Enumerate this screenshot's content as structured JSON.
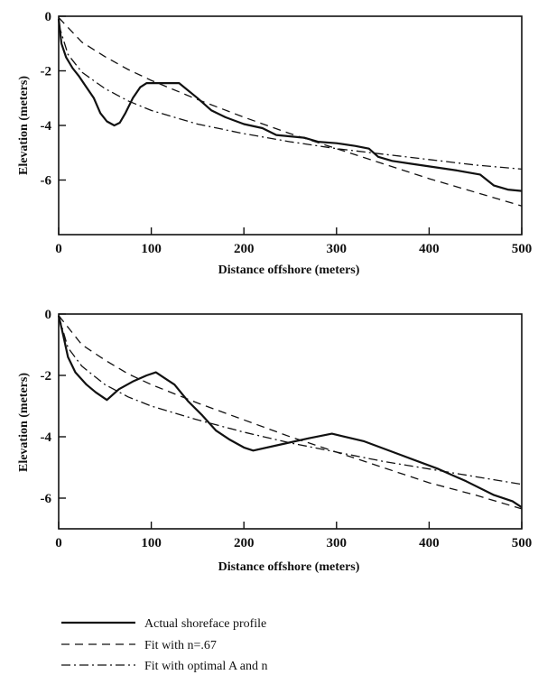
{
  "chart_data": [
    {
      "type": "line",
      "xlabel": "Distance offshore (meters)",
      "ylabel": "Elevation (meters)",
      "xlim": [
        0,
        500
      ],
      "ylim": [
        -8,
        0
      ],
      "x_ticks": [
        0,
        100,
        200,
        300,
        400,
        500
      ],
      "y_ticks": [
        0,
        -2,
        -4,
        -6
      ],
      "grid": false,
      "series": [
        {
          "name": "Actual shoreface profile",
          "style": "solid",
          "points": [
            [
              0,
              -0.1
            ],
            [
              3,
              -1.0
            ],
            [
              8,
              -1.5
            ],
            [
              15,
              -1.9
            ],
            [
              22,
              -2.2
            ],
            [
              30,
              -2.6
            ],
            [
              38,
              -3.0
            ],
            [
              45,
              -3.55
            ],
            [
              52,
              -3.85
            ],
            [
              60,
              -4.0
            ],
            [
              66,
              -3.9
            ],
            [
              72,
              -3.55
            ],
            [
              80,
              -3.0
            ],
            [
              88,
              -2.6
            ],
            [
              95,
              -2.45
            ],
            [
              110,
              -2.45
            ],
            [
              130,
              -2.45
            ],
            [
              150,
              -3.0
            ],
            [
              165,
              -3.45
            ],
            [
              180,
              -3.7
            ],
            [
              200,
              -3.95
            ],
            [
              220,
              -4.1
            ],
            [
              235,
              -4.35
            ],
            [
              250,
              -4.4
            ],
            [
              265,
              -4.45
            ],
            [
              280,
              -4.6
            ],
            [
              300,
              -4.65
            ],
            [
              320,
              -4.75
            ],
            [
              335,
              -4.85
            ],
            [
              345,
              -5.15
            ],
            [
              360,
              -5.3
            ],
            [
              380,
              -5.4
            ],
            [
              400,
              -5.5
            ],
            [
              430,
              -5.65
            ],
            [
              455,
              -5.8
            ],
            [
              470,
              -6.2
            ],
            [
              485,
              -6.35
            ],
            [
              500,
              -6.4
            ]
          ]
        },
        {
          "name": "Fit with n=.67",
          "style": "dashed",
          "points": [
            [
              0,
              -0.05
            ],
            [
              25,
              -0.95
            ],
            [
              50,
              -1.48
            ],
            [
              75,
              -1.95
            ],
            [
              100,
              -2.35
            ],
            [
              150,
              -3.05
            ],
            [
              200,
              -3.7
            ],
            [
              250,
              -4.3
            ],
            [
              300,
              -4.85
            ],
            [
              350,
              -5.4
            ],
            [
              400,
              -5.95
            ],
            [
              450,
              -6.45
            ],
            [
              500,
              -6.95
            ]
          ]
        },
        {
          "name": "Fit with optimal A and n",
          "style": "dashdot",
          "points": [
            [
              0,
              -0.3
            ],
            [
              10,
              -1.4
            ],
            [
              25,
              -2.05
            ],
            [
              50,
              -2.65
            ],
            [
              75,
              -3.1
            ],
            [
              100,
              -3.45
            ],
            [
              150,
              -3.95
            ],
            [
              200,
              -4.3
            ],
            [
              250,
              -4.6
            ],
            [
              300,
              -4.85
            ],
            [
              350,
              -5.05
            ],
            [
              400,
              -5.25
            ],
            [
              450,
              -5.45
            ],
            [
              500,
              -5.6
            ]
          ]
        }
      ]
    },
    {
      "type": "line",
      "xlabel": "Distance offshore (meters)",
      "ylabel": "Elevation (meters)",
      "xlim": [
        0,
        500
      ],
      "ylim": [
        -7,
        0
      ],
      "x_ticks": [
        0,
        100,
        200,
        300,
        400,
        500
      ],
      "y_ticks": [
        0,
        -2,
        -4,
        -6
      ],
      "grid": false,
      "series": [
        {
          "name": "Actual shoreface profile",
          "style": "solid",
          "points": [
            [
              0,
              -0.05
            ],
            [
              5,
              -0.7
            ],
            [
              10,
              -1.4
            ],
            [
              18,
              -1.9
            ],
            [
              30,
              -2.3
            ],
            [
              40,
              -2.55
            ],
            [
              52,
              -2.8
            ],
            [
              65,
              -2.45
            ],
            [
              80,
              -2.2
            ],
            [
              95,
              -2.0
            ],
            [
              105,
              -1.9
            ],
            [
              115,
              -2.1
            ],
            [
              125,
              -2.3
            ],
            [
              140,
              -2.85
            ],
            [
              155,
              -3.3
            ],
            [
              170,
              -3.8
            ],
            [
              185,
              -4.1
            ],
            [
              200,
              -4.35
            ],
            [
              210,
              -4.45
            ],
            [
              240,
              -4.25
            ],
            [
              270,
              -4.05
            ],
            [
              295,
              -3.9
            ],
            [
              330,
              -4.15
            ],
            [
              370,
              -4.6
            ],
            [
              410,
              -5.05
            ],
            [
              440,
              -5.45
            ],
            [
              470,
              -5.9
            ],
            [
              490,
              -6.1
            ],
            [
              500,
              -6.3
            ]
          ]
        },
        {
          "name": "Fit with n=.67",
          "style": "dashed",
          "points": [
            [
              0,
              -0.05
            ],
            [
              25,
              -1.0
            ],
            [
              50,
              -1.5
            ],
            [
              75,
              -1.95
            ],
            [
              100,
              -2.3
            ],
            [
              150,
              -2.9
            ],
            [
              200,
              -3.45
            ],
            [
              250,
              -4.0
            ],
            [
              300,
              -4.5
            ],
            [
              350,
              -5.0
            ],
            [
              400,
              -5.5
            ],
            [
              450,
              -5.9
            ],
            [
              500,
              -6.35
            ]
          ]
        },
        {
          "name": "Fit with optimal A and n",
          "style": "dashdot",
          "points": [
            [
              0,
              -0.05
            ],
            [
              10,
              -1.1
            ],
            [
              25,
              -1.7
            ],
            [
              50,
              -2.3
            ],
            [
              75,
              -2.7
            ],
            [
              100,
              -3.0
            ],
            [
              150,
              -3.45
            ],
            [
              200,
              -3.85
            ],
            [
              250,
              -4.2
            ],
            [
              300,
              -4.5
            ],
            [
              350,
              -4.8
            ],
            [
              400,
              -5.05
            ],
            [
              450,
              -5.3
            ],
            [
              500,
              -5.55
            ]
          ]
        }
      ]
    }
  ],
  "legend": {
    "items": [
      {
        "label": "Actual shoreface profile",
        "style": "solid"
      },
      {
        "label": "Fit with n=.67",
        "style": "dashed"
      },
      {
        "label": "Fit with optimal A and n",
        "style": "dashdot"
      }
    ]
  }
}
